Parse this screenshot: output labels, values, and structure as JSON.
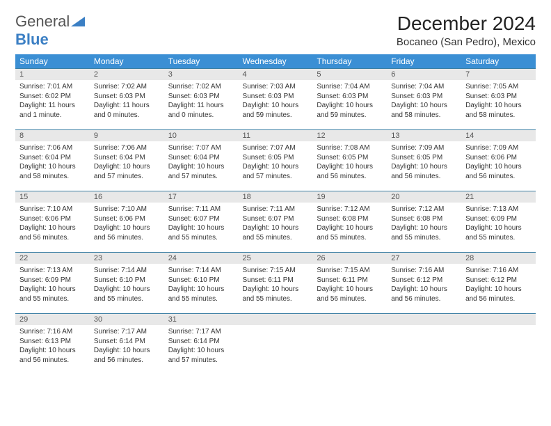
{
  "brand": {
    "word1": "General",
    "word2": "Blue"
  },
  "title": "December 2024",
  "location": "Bocaneo (San Pedro), Mexico",
  "colors": {
    "header_bg": "#3b8fd4",
    "header_fg": "#ffffff",
    "rule": "#3b7fa4",
    "daynum_bg": "#e8e8e8",
    "brand_blue": "#3b7fc4"
  },
  "weekdays": [
    "Sunday",
    "Monday",
    "Tuesday",
    "Wednesday",
    "Thursday",
    "Friday",
    "Saturday"
  ],
  "days": [
    {
      "n": "1",
      "sr": "7:01 AM",
      "ss": "6:02 PM",
      "dl": "11 hours and 1 minute."
    },
    {
      "n": "2",
      "sr": "7:02 AM",
      "ss": "6:03 PM",
      "dl": "11 hours and 0 minutes."
    },
    {
      "n": "3",
      "sr": "7:02 AM",
      "ss": "6:03 PM",
      "dl": "11 hours and 0 minutes."
    },
    {
      "n": "4",
      "sr": "7:03 AM",
      "ss": "6:03 PM",
      "dl": "10 hours and 59 minutes."
    },
    {
      "n": "5",
      "sr": "7:04 AM",
      "ss": "6:03 PM",
      "dl": "10 hours and 59 minutes."
    },
    {
      "n": "6",
      "sr": "7:04 AM",
      "ss": "6:03 PM",
      "dl": "10 hours and 58 minutes."
    },
    {
      "n": "7",
      "sr": "7:05 AM",
      "ss": "6:03 PM",
      "dl": "10 hours and 58 minutes."
    },
    {
      "n": "8",
      "sr": "7:06 AM",
      "ss": "6:04 PM",
      "dl": "10 hours and 58 minutes."
    },
    {
      "n": "9",
      "sr": "7:06 AM",
      "ss": "6:04 PM",
      "dl": "10 hours and 57 minutes."
    },
    {
      "n": "10",
      "sr": "7:07 AM",
      "ss": "6:04 PM",
      "dl": "10 hours and 57 minutes."
    },
    {
      "n": "11",
      "sr": "7:07 AM",
      "ss": "6:05 PM",
      "dl": "10 hours and 57 minutes."
    },
    {
      "n": "12",
      "sr": "7:08 AM",
      "ss": "6:05 PM",
      "dl": "10 hours and 56 minutes."
    },
    {
      "n": "13",
      "sr": "7:09 AM",
      "ss": "6:05 PM",
      "dl": "10 hours and 56 minutes."
    },
    {
      "n": "14",
      "sr": "7:09 AM",
      "ss": "6:06 PM",
      "dl": "10 hours and 56 minutes."
    },
    {
      "n": "15",
      "sr": "7:10 AM",
      "ss": "6:06 PM",
      "dl": "10 hours and 56 minutes."
    },
    {
      "n": "16",
      "sr": "7:10 AM",
      "ss": "6:06 PM",
      "dl": "10 hours and 56 minutes."
    },
    {
      "n": "17",
      "sr": "7:11 AM",
      "ss": "6:07 PM",
      "dl": "10 hours and 55 minutes."
    },
    {
      "n": "18",
      "sr": "7:11 AM",
      "ss": "6:07 PM",
      "dl": "10 hours and 55 minutes."
    },
    {
      "n": "19",
      "sr": "7:12 AM",
      "ss": "6:08 PM",
      "dl": "10 hours and 55 minutes."
    },
    {
      "n": "20",
      "sr": "7:12 AM",
      "ss": "6:08 PM",
      "dl": "10 hours and 55 minutes."
    },
    {
      "n": "21",
      "sr": "7:13 AM",
      "ss": "6:09 PM",
      "dl": "10 hours and 55 minutes."
    },
    {
      "n": "22",
      "sr": "7:13 AM",
      "ss": "6:09 PM",
      "dl": "10 hours and 55 minutes."
    },
    {
      "n": "23",
      "sr": "7:14 AM",
      "ss": "6:10 PM",
      "dl": "10 hours and 55 minutes."
    },
    {
      "n": "24",
      "sr": "7:14 AM",
      "ss": "6:10 PM",
      "dl": "10 hours and 55 minutes."
    },
    {
      "n": "25",
      "sr": "7:15 AM",
      "ss": "6:11 PM",
      "dl": "10 hours and 55 minutes."
    },
    {
      "n": "26",
      "sr": "7:15 AM",
      "ss": "6:11 PM",
      "dl": "10 hours and 56 minutes."
    },
    {
      "n": "27",
      "sr": "7:16 AM",
      "ss": "6:12 PM",
      "dl": "10 hours and 56 minutes."
    },
    {
      "n": "28",
      "sr": "7:16 AM",
      "ss": "6:12 PM",
      "dl": "10 hours and 56 minutes."
    },
    {
      "n": "29",
      "sr": "7:16 AM",
      "ss": "6:13 PM",
      "dl": "10 hours and 56 minutes."
    },
    {
      "n": "30",
      "sr": "7:17 AM",
      "ss": "6:14 PM",
      "dl": "10 hours and 56 minutes."
    },
    {
      "n": "31",
      "sr": "7:17 AM",
      "ss": "6:14 PM",
      "dl": "10 hours and 57 minutes."
    }
  ],
  "labels": {
    "sunrise": "Sunrise:",
    "sunset": "Sunset:",
    "daylight": "Daylight:"
  }
}
